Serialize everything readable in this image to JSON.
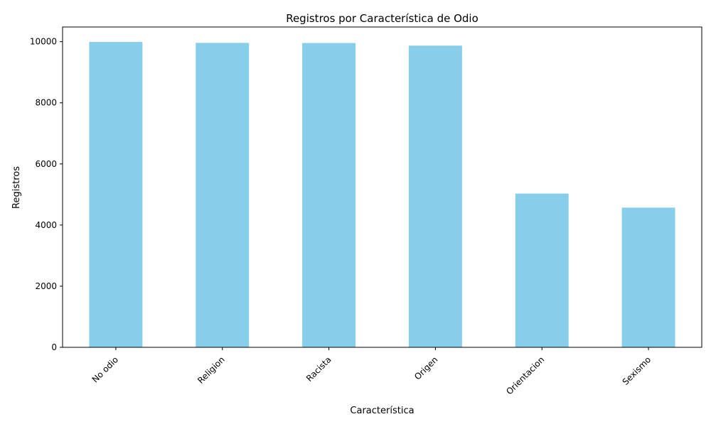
{
  "chart_data": {
    "type": "bar",
    "title": "Registros por Característica de Odio",
    "xlabel": "Característica",
    "ylabel": "Registros",
    "categories": [
      "No odio",
      "Religion",
      "Racista",
      "Origen",
      "Orientacion",
      "Sexismo"
    ],
    "values": [
      9990,
      9960,
      9955,
      9870,
      5030,
      4570
    ],
    "ylim": [
      0,
      10480
    ],
    "yticks": [
      0,
      2000,
      4000,
      6000,
      8000,
      10000
    ],
    "bar_color": "#87CEEB",
    "grid": false,
    "legend": "none"
  }
}
